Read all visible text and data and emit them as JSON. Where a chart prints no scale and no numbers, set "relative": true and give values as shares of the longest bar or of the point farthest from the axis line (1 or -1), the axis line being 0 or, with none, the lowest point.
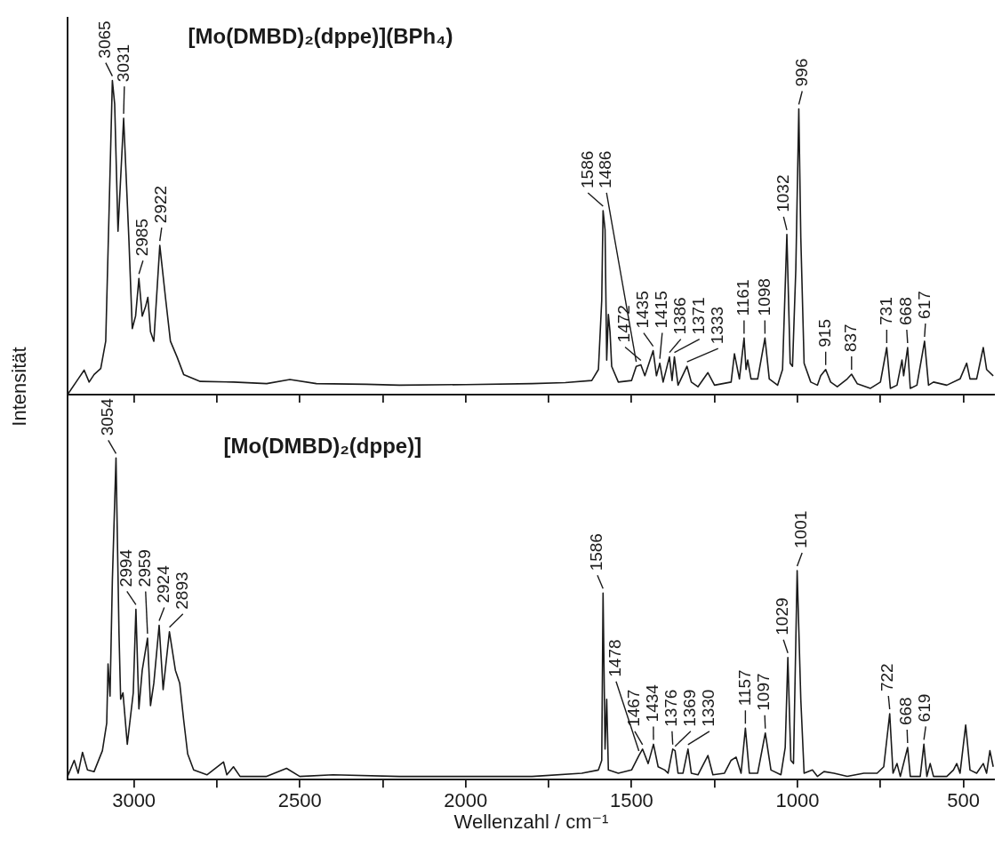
{
  "chart_data": [
    {
      "type": "line",
      "title": "[Mo(DMBD)₂(dppe)](BPh₄)",
      "relative": true,
      "tick_labels": false,
      "grid": false,
      "legend": false,
      "marker": "none",
      "line_style": "solid",
      "xlim": [
        3200,
        405
      ],
      "xticks": [
        3000,
        {
          "value": 2750,
          "label": null
        },
        2500,
        {
          "value": 2250,
          "label": null
        },
        2000,
        {
          "value": 1750,
          "label": null
        },
        1500,
        {
          "value": 1250,
          "label": null
        },
        1000,
        {
          "value": 750,
          "label": null
        },
        500
      ],
      "x": [
        3200,
        3168,
        3150,
        3135,
        3120,
        3100,
        3085,
        3075,
        3065,
        3058,
        3048,
        3031,
        3015,
        3005,
        2995,
        2985,
        2975,
        2965,
        2958,
        2950,
        2940,
        2922,
        2905,
        2890,
        2870,
        2850,
        2800,
        2700,
        2600,
        2530,
        2450,
        2300,
        2200,
        2000,
        1800,
        1700,
        1620,
        1600,
        1590,
        1586,
        1580,
        1575,
        1570,
        1565,
        1560,
        1540,
        1500,
        1486,
        1472,
        1460,
        1435,
        1425,
        1415,
        1405,
        1386,
        1378,
        1371,
        1360,
        1333,
        1320,
        1300,
        1270,
        1250,
        1200,
        1190,
        1175,
        1161,
        1155,
        1150,
        1140,
        1120,
        1098,
        1085,
        1060,
        1045,
        1032,
        1022,
        1015,
        1005,
        996,
        990,
        980,
        960,
        940,
        930,
        915,
        900,
        880,
        850,
        837,
        820,
        780,
        750,
        731,
        720,
        700,
        685,
        680,
        668,
        660,
        640,
        617,
        605,
        590,
        550,
        510,
        490,
        480,
        460,
        440,
        430,
        410
      ],
      "series": [
        {
          "color": "#1a1a1a",
          "values": [
            0,
            0.05,
            0.078,
            0.04,
            0.064,
            0.083,
            0.17,
            0.58,
            1.0,
            0.925,
            0.52,
            0.88,
            0.49,
            0.21,
            0.25,
            0.37,
            0.25,
            0.28,
            0.31,
            0.2,
            0.17,
            0.475,
            0.31,
            0.17,
            0.12,
            0.064,
            0.042,
            0.04,
            0.035,
            0.048,
            0.035,
            0.033,
            0.03,
            0.032,
            0.035,
            0.038,
            0.045,
            0.08,
            0.3,
            0.586,
            0.525,
            0.11,
            0.255,
            0.2,
            0.09,
            0.04,
            0.045,
            0.09,
            0.095,
            0.06,
            0.14,
            0.06,
            0.1,
            0.04,
            0.12,
            0.045,
            0.12,
            0.03,
            0.09,
            0.04,
            0.025,
            0.07,
            0.03,
            0.04,
            0.13,
            0.05,
            0.18,
            0.08,
            0.11,
            0.05,
            0.05,
            0.18,
            0.05,
            0.03,
            0.08,
            0.51,
            0.1,
            0.09,
            0.4,
            0.91,
            0.5,
            0.1,
            0.04,
            0.03,
            0.06,
            0.08,
            0.04,
            0.025,
            0.05,
            0.065,
            0.035,
            0.02,
            0.04,
            0.15,
            0.02,
            0.03,
            0.11,
            0.06,
            0.15,
            0.02,
            0.03,
            0.17,
            0.03,
            0.04,
            0.03,
            0.05,
            0.1,
            0.05,
            0.05,
            0.15,
            0.08,
            0.06
          ]
        }
      ],
      "annotations": [
        {
          "text": "3065",
          "x": 3065,
          "y": 1.0
        },
        {
          "text": "3031",
          "x": 3031,
          "y": 0.88
        },
        {
          "text": "2985",
          "x": 2985,
          "y": 0.37
        },
        {
          "text": "2922",
          "x": 2922,
          "y": 0.475
        },
        {
          "text": "1586",
          "x": 1586,
          "y": 0.586
        },
        {
          "text": "1486",
          "x": 1486,
          "y": 0.09
        },
        {
          "text": "1472",
          "x": 1472,
          "y": 0.095
        },
        {
          "text": "1435",
          "x": 1435,
          "y": 0.14
        },
        {
          "text": "1415",
          "x": 1415,
          "y": 0.1
        },
        {
          "text": "1386",
          "x": 1386,
          "y": 0.12
        },
        {
          "text": "1371",
          "x": 1371,
          "y": 0.12
        },
        {
          "text": "1333",
          "x": 1333,
          "y": 0.09
        },
        {
          "text": "1161",
          "x": 1161,
          "y": 0.18
        },
        {
          "text": "1098",
          "x": 1098,
          "y": 0.18
        },
        {
          "text": "1032",
          "x": 1032,
          "y": 0.51
        },
        {
          "text": "996",
          "x": 996,
          "y": 0.91
        },
        {
          "text": "915",
          "x": 915,
          "y": 0.08
        },
        {
          "text": "837",
          "x": 837,
          "y": 0.065
        },
        {
          "text": "731",
          "x": 731,
          "y": 0.15
        },
        {
          "text": "668",
          "x": 668,
          "y": 0.15
        },
        {
          "text": "617",
          "x": 617,
          "y": 0.17
        }
      ]
    },
    {
      "type": "line",
      "title": "[Mo(DMBD)₂(dppe)]",
      "relative": true,
      "tick_labels": "x",
      "grid": false,
      "legend": false,
      "marker": "none",
      "line_style": "solid",
      "xlabel": "Wellenzahl / cm⁻¹",
      "ylabel": "Intensität",
      "xlim": [
        3200,
        405
      ],
      "xticks": [
        3000,
        {
          "value": 2750,
          "label": null
        },
        2500,
        {
          "value": 2250,
          "label": null
        },
        2000,
        {
          "value": 1750,
          "label": null
        },
        1500,
        {
          "value": 1250,
          "label": null
        },
        1000,
        {
          "value": 750,
          "label": null
        },
        500
      ],
      "x": [
        3200,
        3180,
        3168,
        3155,
        3140,
        3120,
        3095,
        3082,
        3078,
        3072,
        3065,
        3054,
        3045,
        3040,
        3033,
        3020,
        3002,
        2994,
        2985,
        2975,
        2959,
        2950,
        2940,
        2924,
        2912,
        2893,
        2875,
        2862,
        2850,
        2838,
        2820,
        2780,
        2730,
        2720,
        2700,
        2680,
        2600,
        2540,
        2500,
        2400,
        2200,
        2000,
        1800,
        1650,
        1600,
        1590,
        1586,
        1580,
        1575,
        1570,
        1540,
        1500,
        1478,
        1467,
        1450,
        1434,
        1420,
        1400,
        1390,
        1376,
        1369,
        1360,
        1345,
        1330,
        1320,
        1300,
        1270,
        1255,
        1220,
        1200,
        1185,
        1170,
        1157,
        1145,
        1120,
        1097,
        1080,
        1050,
        1037,
        1029,
        1020,
        1012,
        1001,
        990,
        980,
        955,
        940,
        920,
        890,
        850,
        800,
        760,
        740,
        722,
        712,
        700,
        690,
        668,
        660,
        630,
        619,
        610,
        600,
        590,
        550,
        530,
        520,
        510,
        493,
        480,
        460,
        440,
        430,
        420,
        410
      ],
      "series": [
        {
          "color": "#1a1a1a",
          "values": [
            0.01,
            0.06,
            0.02,
            0.085,
            0.03,
            0.025,
            0.09,
            0.176,
            0.36,
            0.26,
            0.62,
            1.0,
            0.455,
            0.25,
            0.27,
            0.11,
            0.27,
            0.53,
            0.22,
            0.34,
            0.44,
            0.23,
            0.3,
            0.48,
            0.28,
            0.46,
            0.34,
            0.3,
            0.185,
            0.08,
            0.03,
            0.015,
            0.055,
            0.015,
            0.04,
            0.01,
            0.01,
            0.035,
            0.01,
            0.015,
            0.01,
            0.01,
            0.01,
            0.02,
            0.03,
            0.06,
            0.58,
            0.095,
            0.25,
            0.03,
            0.02,
            0.03,
            0.075,
            0.095,
            0.05,
            0.11,
            0.04,
            0.03,
            0.02,
            0.095,
            0.09,
            0.02,
            0.02,
            0.095,
            0.02,
            0.015,
            0.075,
            0.015,
            0.02,
            0.06,
            0.07,
            0.02,
            0.16,
            0.02,
            0.02,
            0.145,
            0.03,
            0.015,
            0.1,
            0.38,
            0.06,
            0.05,
            0.65,
            0.25,
            0.02,
            0.03,
            0.01,
            0.025,
            0.02,
            0.01,
            0.02,
            0.02,
            0.04,
            0.205,
            0.02,
            0.05,
            0.01,
            0.1,
            0.01,
            0.01,
            0.11,
            0.01,
            0.05,
            0.01,
            0.01,
            0.03,
            0.05,
            0.02,
            0.17,
            0.03,
            0.02,
            0.05,
            0.02,
            0.09,
            0.04
          ]
        }
      ],
      "annotations": [
        {
          "text": "3054",
          "x": 3054,
          "y": 1.0
        },
        {
          "text": "2994",
          "x": 2994,
          "y": 0.53
        },
        {
          "text": "2959",
          "x": 2959,
          "y": 0.44
        },
        {
          "text": "2924",
          "x": 2924,
          "y": 0.48
        },
        {
          "text": "2893",
          "x": 2893,
          "y": 0.46
        },
        {
          "text": "1586",
          "x": 1586,
          "y": 0.58
        },
        {
          "text": "1478",
          "x": 1478,
          "y": 0.075
        },
        {
          "text": "1467",
          "x": 1467,
          "y": 0.095
        },
        {
          "text": "1434",
          "x": 1434,
          "y": 0.11
        },
        {
          "text": "1376",
          "x": 1376,
          "y": 0.095
        },
        {
          "text": "1369",
          "x": 1369,
          "y": 0.09
        },
        {
          "text": "1330",
          "x": 1330,
          "y": 0.095
        },
        {
          "text": "1157",
          "x": 1157,
          "y": 0.16
        },
        {
          "text": "1097",
          "x": 1097,
          "y": 0.145
        },
        {
          "text": "1029",
          "x": 1029,
          "y": 0.38
        },
        {
          "text": "1001",
          "x": 1001,
          "y": 0.65
        },
        {
          "text": "722",
          "x": 722,
          "y": 0.205
        },
        {
          "text": "668",
          "x": 668,
          "y": 0.1
        },
        {
          "text": "619",
          "x": 619,
          "y": 0.11
        }
      ]
    }
  ]
}
